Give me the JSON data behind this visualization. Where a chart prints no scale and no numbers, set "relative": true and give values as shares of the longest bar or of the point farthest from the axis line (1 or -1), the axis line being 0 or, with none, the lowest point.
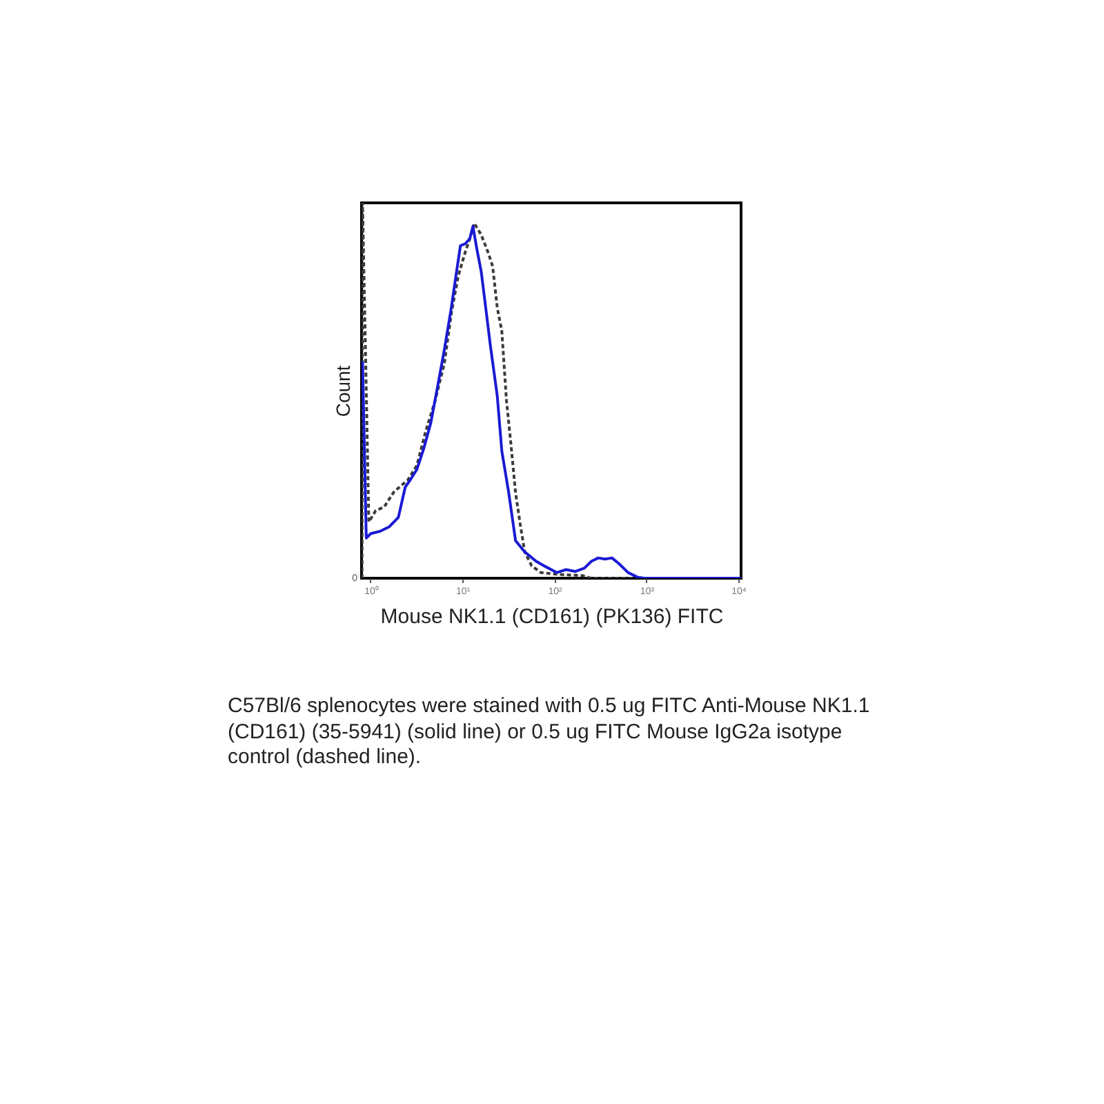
{
  "chart_data": {
    "type": "line",
    "xlabel": "Mouse NK1.1 (CD161) (PK136) FITC",
    "ylabel": "Count",
    "log": "x",
    "relative": true,
    "xlim": [
      0.8,
      10700
    ],
    "xticks": [
      {
        "value": 1,
        "label": "10⁰"
      },
      {
        "value": 10,
        "label": "10¹"
      },
      {
        "value": 100,
        "label": "10²"
      },
      {
        "value": 1000,
        "label": "10³"
      },
      {
        "value": 10000,
        "label": "10⁴"
      }
    ],
    "series": [
      {
        "color": "#3c3c3c",
        "line_style": "dashed",
        "x": [
          0.81,
          0.82,
          0.96,
          1.14,
          1.41,
          1.8,
          2.14,
          2.54,
          3.2,
          3.97,
          5.06,
          6.37,
          7.57,
          9.0,
          10.7,
          12.0,
          13.4,
          16.0,
          19.0,
          21.3,
          23.9,
          26.8,
          30.1,
          33.8,
          37.8,
          42.5,
          47.6,
          56.6,
          71.3,
          113,
          203,
          250,
          10700
        ],
        "values": [
          0,
          1,
          0.15,
          0.18,
          0.19,
          0.23,
          0.246,
          0.261,
          0.301,
          0.39,
          0.474,
          0.574,
          0.706,
          0.805,
          0.868,
          0.904,
          0.946,
          0.915,
          0.868,
          0.831,
          0.721,
          0.658,
          0.474,
          0.353,
          0.228,
          0.143,
          0.07,
          0.033,
          0.015,
          0.01,
          0.007,
          0,
          0
        ]
      },
      {
        "color": "#1a1ad4",
        "line_style": "solid",
        "x": [
          0.82,
          0.9,
          1.01,
          1.27,
          1.6,
          2.01,
          2.39,
          2.69,
          3.2,
          3.8,
          4.52,
          5.37,
          6.37,
          7.57,
          8.49,
          9.51,
          10.7,
          12.0,
          13.0,
          14.3,
          16.0,
          17.9,
          20.1,
          23.9,
          26.8,
          31.8,
          37.8,
          47.6,
          63.4,
          80,
          106,
          134,
          169,
          212,
          252,
          299,
          356,
          423,
          502,
          633,
          798,
          948,
          10700
        ],
        "values": [
          0.578,
          0.107,
          0.119,
          0.125,
          0.137,
          0.162,
          0.243,
          0.261,
          0.29,
          0.346,
          0.413,
          0.511,
          0.61,
          0.721,
          0.805,
          0.886,
          0.891,
          0.904,
          0.9375,
          0.879,
          0.817,
          0.721,
          0.621,
          0.486,
          0.339,
          0.229,
          0.1,
          0.07,
          0.045,
          0.031,
          0.015,
          0.023,
          0.018,
          0.027,
          0.045,
          0.054,
          0.051,
          0.054,
          0.039,
          0.015,
          0.003,
          0,
          0
        ]
      }
    ],
    "annotations": [
      "0",
      "C57Bl/6 splenocytes were stained with 0.5 ug FITC Anti-Mouse NK1.1 (CD161) (35-5941) (solid line) or 0.5 ug FITC Mouse IgG2a isotype control (dashed line)."
    ]
  }
}
